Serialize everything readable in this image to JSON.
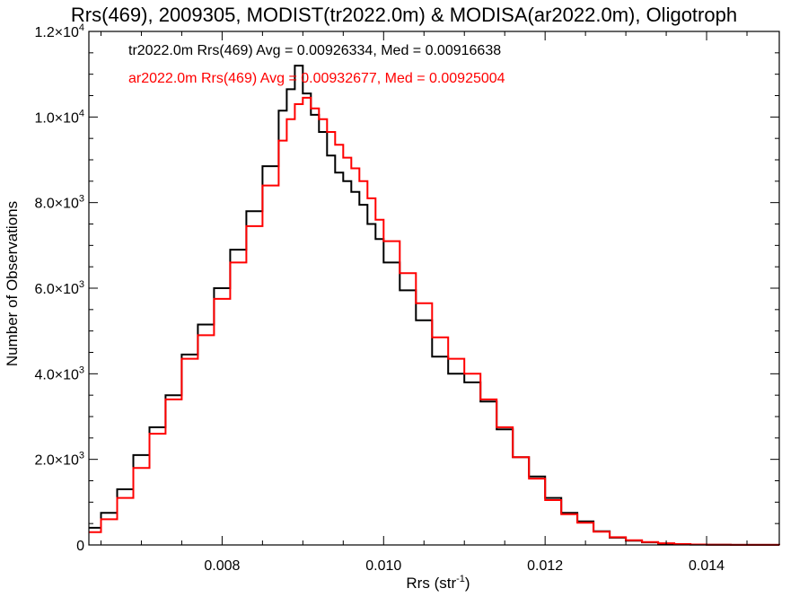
{
  "chart_data": {
    "type": "line",
    "title": "Rrs(469), 2009305, MODIST(tr2022.0m) & MODISA(ar2022.0m), Oligotroph",
    "xlabel_base": "Rrs (str",
    "xlabel_sup": "-1",
    "xlabel_tail": ")",
    "ylabel": "Number of Observations",
    "xlim": [
      0.00635,
      0.0149
    ],
    "ylim": [
      0,
      12000
    ],
    "x_ticks": [
      {
        "value": 0.008,
        "label": "0.008"
      },
      {
        "value": 0.01,
        "label": "0.010"
      },
      {
        "value": 0.012,
        "label": "0.012"
      },
      {
        "value": 0.014,
        "label": "0.014"
      }
    ],
    "y_ticks": [
      {
        "value": 0,
        "mant": "0",
        "exp": ""
      },
      {
        "value": 2000,
        "mant": "2.0×10",
        "exp": "3"
      },
      {
        "value": 4000,
        "mant": "4.0×10",
        "exp": "3"
      },
      {
        "value": 6000,
        "mant": "6.0×10",
        "exp": "3"
      },
      {
        "value": 8000,
        "mant": "8.0×10",
        "exp": "3"
      },
      {
        "value": 10000,
        "mant": "1.0×10",
        "exp": "4"
      },
      {
        "value": 12000,
        "mant": "1.2×10",
        "exp": "4"
      }
    ],
    "series": [
      {
        "legend": "tr2022.0m Rrs(469) Avg = 0.00926334, Med = 0.00916638",
        "color": "#000000",
        "x": [
          0.00635,
          0.0065,
          0.0067,
          0.0069,
          0.0071,
          0.0073,
          0.0075,
          0.0077,
          0.0079,
          0.0081,
          0.0083,
          0.0085,
          0.0087,
          0.0088,
          0.0089,
          0.009,
          0.0091,
          0.0092,
          0.0093,
          0.0094,
          0.0095,
          0.0096,
          0.0097,
          0.0098,
          0.0099,
          0.01,
          0.0102,
          0.0104,
          0.0106,
          0.0108,
          0.011,
          0.0112,
          0.0114,
          0.0116,
          0.0118,
          0.012,
          0.0122,
          0.0124,
          0.0126,
          0.0128,
          0.013,
          0.0132,
          0.0134,
          0.0136,
          0.0138,
          0.014,
          0.0143,
          0.0149
        ],
        "y": [
          400,
          750,
          1300,
          2100,
          2750,
          3500,
          4450,
          5150,
          6000,
          6900,
          7800,
          8850,
          10150,
          10650,
          11200,
          10550,
          10050,
          9650,
          9100,
          8700,
          8500,
          8250,
          7950,
          7500,
          7150,
          6600,
          5950,
          5250,
          4400,
          4000,
          3800,
          3350,
          2700,
          2050,
          1600,
          1100,
          750,
          550,
          320,
          170,
          100,
          60,
          30,
          15,
          8,
          4,
          2,
          0
        ]
      },
      {
        "legend": "ar2022.0m Rrs(469) Avg = 0.00932677, Med = 0.00925004",
        "color": "#ff0000",
        "x": [
          0.00635,
          0.0065,
          0.0067,
          0.0069,
          0.0071,
          0.0073,
          0.0075,
          0.0077,
          0.0079,
          0.0081,
          0.0083,
          0.0085,
          0.0087,
          0.0088,
          0.0089,
          0.009,
          0.0091,
          0.0092,
          0.0093,
          0.0094,
          0.0095,
          0.0096,
          0.0097,
          0.0098,
          0.0099,
          0.01,
          0.0102,
          0.0104,
          0.0106,
          0.0108,
          0.011,
          0.0112,
          0.0114,
          0.0116,
          0.0118,
          0.012,
          0.0122,
          0.0124,
          0.0126,
          0.0128,
          0.013,
          0.0132,
          0.0134,
          0.0136,
          0.0138,
          0.014,
          0.0143,
          0.0149
        ],
        "y": [
          300,
          600,
          1100,
          1800,
          2600,
          3400,
          4350,
          4900,
          5750,
          6600,
          7450,
          8400,
          9450,
          9950,
          10300,
          10450,
          10200,
          9950,
          9650,
          9350,
          9050,
          8800,
          8500,
          8100,
          7600,
          7100,
          6350,
          5650,
          4850,
          4350,
          4000,
          3400,
          2750,
          2050,
          1550,
          1050,
          720,
          520,
          310,
          180,
          110,
          70,
          40,
          20,
          10,
          5,
          2,
          0
        ]
      }
    ]
  }
}
